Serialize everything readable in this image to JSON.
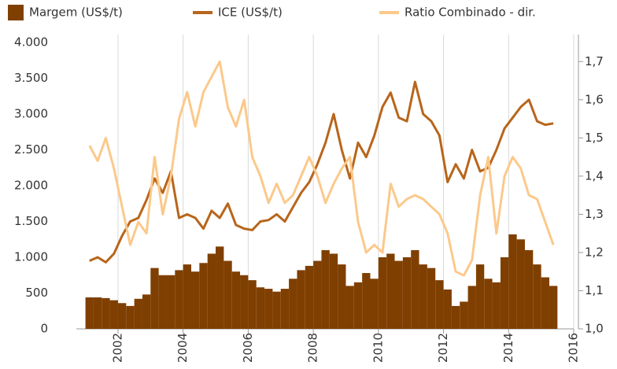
{
  "chart_data": {
    "type": "bar-line",
    "x": [
      2001.0,
      2001.25,
      2001.5,
      2001.75,
      2002.0,
      2002.25,
      2002.5,
      2002.75,
      2003.0,
      2003.25,
      2003.5,
      2003.75,
      2004.0,
      2004.25,
      2004.5,
      2004.75,
      2005.0,
      2005.25,
      2005.5,
      2005.75,
      2006.0,
      2006.25,
      2006.5,
      2006.75,
      2007.0,
      2007.25,
      2007.5,
      2007.75,
      2008.0,
      2008.25,
      2008.5,
      2008.75,
      2009.0,
      2009.25,
      2009.5,
      2009.75,
      2010.0,
      2010.25,
      2010.5,
      2010.75,
      2011.0,
      2011.25,
      2011.5,
      2011.75,
      2012.0,
      2012.25,
      2012.5,
      2012.75,
      2013.0,
      2013.25,
      2013.5,
      2013.75,
      2014.0,
      2014.25,
      2014.5,
      2014.75,
      2015.0,
      2015.25
    ],
    "series": [
      {
        "name": "Margem (US$/t)",
        "type": "bar",
        "color": "#7f3f00",
        "values": [
          440,
          440,
          430,
          400,
          360,
          320,
          420,
          480,
          850,
          750,
          750,
          820,
          900,
          800,
          920,
          1050,
          1150,
          950,
          800,
          750,
          680,
          580,
          560,
          520,
          560,
          700,
          820,
          880,
          950,
          1100,
          1050,
          900,
          600,
          650,
          780,
          700,
          1000,
          1050,
          950,
          1000,
          1100,
          900,
          850,
          680,
          550,
          320,
          380,
          600,
          900,
          700,
          650,
          1000,
          1320,
          1250,
          1100,
          900,
          720,
          600
        ]
      },
      {
        "name": "ICE (US$/t)",
        "type": "line",
        "color": "#b8651b",
        "values": [
          950,
          1000,
          930,
          1050,
          1300,
          1500,
          1550,
          1800,
          2100,
          1900,
          2200,
          1550,
          1600,
          1550,
          1400,
          1650,
          1550,
          1750,
          1450,
          1400,
          1380,
          1500,
          1520,
          1600,
          1500,
          1700,
          1900,
          2050,
          2300,
          2600,
          3000,
          2500,
          2100,
          2600,
          2400,
          2700,
          3100,
          3300,
          2950,
          2900,
          3450,
          3000,
          2900,
          2700,
          2050,
          2300,
          2100,
          2500,
          2200,
          2250,
          2500,
          2800,
          2950,
          3100,
          3200,
          2900,
          2850,
          2870
        ]
      },
      {
        "name": "Ratio Combinado - dir.",
        "type": "line",
        "axis": "y2",
        "color": "#fbc98b",
        "values": [
          1.48,
          1.44,
          1.5,
          1.42,
          1.32,
          1.22,
          1.28,
          1.25,
          1.45,
          1.3,
          1.4,
          1.55,
          1.62,
          1.53,
          1.62,
          1.66,
          1.7,
          1.58,
          1.53,
          1.6,
          1.45,
          1.4,
          1.33,
          1.38,
          1.33,
          1.35,
          1.4,
          1.45,
          1.4,
          1.33,
          1.38,
          1.42,
          1.45,
          1.28,
          1.2,
          1.22,
          1.2,
          1.38,
          1.32,
          1.34,
          1.35,
          1.34,
          1.32,
          1.3,
          1.25,
          1.15,
          1.14,
          1.18,
          1.35,
          1.45,
          1.25,
          1.4,
          1.45,
          1.42,
          1.35,
          1.34,
          1.28,
          1.22
        ]
      }
    ],
    "xlim": [
      2000.72,
      2016
    ],
    "xticks": [
      2002,
      2004,
      2006,
      2008,
      2010,
      2012,
      2014,
      2016
    ],
    "ylim": [
      0,
      4000
    ],
    "yticks": [
      0,
      {
        "value": 500,
        "label": "500"
      },
      {
        "value": 1000,
        "label": "1.000"
      },
      {
        "value": 1500,
        "label": "1.500"
      },
      {
        "value": 2000,
        "label": "2.000"
      },
      {
        "value": 2500,
        "label": "2.500"
      },
      {
        "value": 3000,
        "label": "3.000"
      },
      {
        "value": 3500,
        "label": "3.500"
      },
      {
        "value": 4000,
        "label": "4.000"
      }
    ],
    "y2lim": [
      1.0,
      1.75
    ],
    "y2ticks": [
      {
        "value": 1.0,
        "label": "1,0"
      },
      {
        "value": 1.1,
        "label": "1,1"
      },
      {
        "value": 1.2,
        "label": "1,2"
      },
      {
        "value": 1.3,
        "label": "1,3"
      },
      {
        "value": 1.4,
        "label": "1,4"
      },
      {
        "value": 1.5,
        "label": "1,5"
      },
      {
        "value": 1.6,
        "label": "1,6"
      },
      {
        "value": 1.7,
        "label": "1,7"
      }
    ],
    "grid": "x",
    "legend": "top"
  }
}
